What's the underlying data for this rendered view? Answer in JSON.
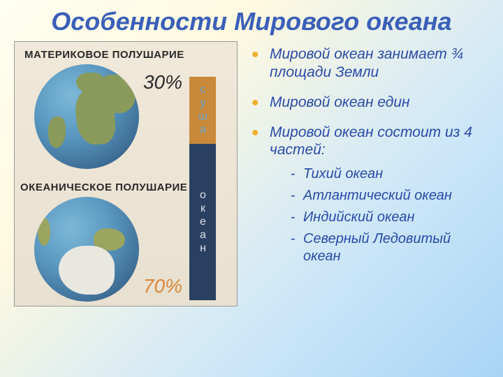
{
  "title": "Особенности Мирового океана",
  "left": {
    "hemi1_label": "МАТЕРИКОВОЕ ПОЛУШАРИЕ",
    "hemi2_label": "ОКЕАНИЧЕСКОЕ ПОЛУШАРИЕ",
    "pct_land": "30%",
    "pct_ocean": "70%",
    "bar_land_label": "суша",
    "bar_ocean_label": "океан",
    "colors": {
      "bar_land": "#c8893a",
      "bar_ocean": "#2a4060",
      "pct70_color": "#d8893a",
      "pct30_color": "#2a2a2a"
    }
  },
  "bullets": [
    "Мировой океан занимает ¾ площади Земли",
    "Мировой океан един",
    "Мировой океан состоит из 4 частей:"
  ],
  "sub_bullets": [
    "Тихий океан",
    "Атлантический океан",
    "Индийский океан",
    "Северный Ледовитый океан"
  ],
  "style": {
    "title_color": "#3a5fb8",
    "bullet_text_color": "#2a4aa8",
    "bullet_marker_color": "#f0b030",
    "title_fontsize": 36,
    "bullet_fontsize": 21,
    "sub_fontsize": 20,
    "bg_gradient": [
      "#fffef0",
      "#fef9e0",
      "#d0e8f8",
      "#a8d5f5"
    ]
  }
}
